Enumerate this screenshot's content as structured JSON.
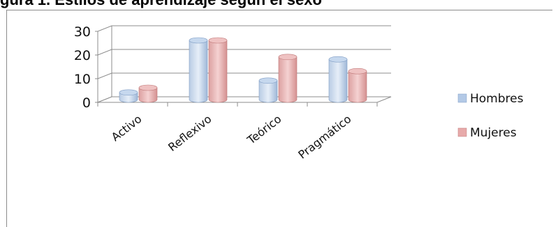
{
  "caption": "gura 1. Estilos de aprendizaje según el sexo",
  "chart_data": {
    "type": "bar",
    "title": "",
    "xlabel": "",
    "ylabel": "",
    "categories": [
      "Activo",
      "Reflexivo",
      "Teórico",
      "Pragmático"
    ],
    "series": [
      {
        "name": "Hombres",
        "values": [
          3,
          25,
          8,
          17
        ],
        "color": "#9fbde0"
      },
      {
        "name": "Mujeres",
        "values": [
          5,
          25,
          18,
          12
        ],
        "color": "#e3a0a0"
      }
    ],
    "yticks": [
      0,
      10,
      20,
      30
    ],
    "ylim": [
      0,
      30
    ],
    "grid": true,
    "legend": "right",
    "projection": "3d"
  }
}
